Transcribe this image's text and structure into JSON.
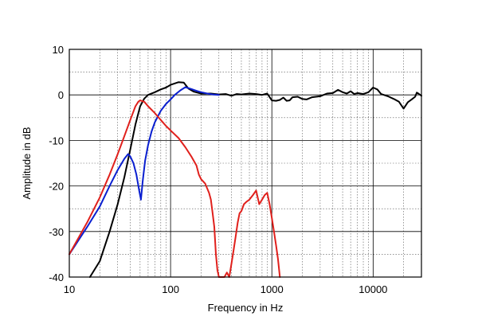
{
  "chart_data": {
    "type": "line",
    "xlabel": "Frequency in Hz",
    "ylabel": "Amplitude in dB",
    "xscale": "log",
    "xlim": [
      10,
      30000
    ],
    "ylim": [
      -40,
      10
    ],
    "grid": true,
    "x_ticks": [
      {
        "value": 10,
        "label": "10"
      },
      {
        "value": 100,
        "label": "100"
      },
      {
        "value": 1000,
        "label": "1000"
      },
      {
        "value": 10000,
        "label": "10000"
      }
    ],
    "y_ticks": [
      {
        "value": 10,
        "label": "10"
      },
      {
        "value": 0,
        "label": "0"
      },
      {
        "value": -10,
        "label": "-10"
      },
      {
        "value": -20,
        "label": "-20"
      },
      {
        "value": -30,
        "label": "-30"
      },
      {
        "value": -40,
        "label": "-40"
      }
    ],
    "series": [
      {
        "color": "#000000",
        "points": [
          [
            16,
            -40
          ],
          [
            20,
            -36.5
          ],
          [
            25,
            -30
          ],
          [
            30,
            -24
          ],
          [
            35,
            -18
          ],
          [
            40,
            -12
          ],
          [
            45,
            -6.5
          ],
          [
            50,
            -2.5
          ],
          [
            55,
            -0.8
          ],
          [
            60,
            0
          ],
          [
            70,
            0.6
          ],
          [
            80,
            1.2
          ],
          [
            90,
            1.6
          ],
          [
            100,
            2.2
          ],
          [
            120,
            2.8
          ],
          [
            135,
            2.7
          ],
          [
            150,
            1.4
          ],
          [
            170,
            0.7
          ],
          [
            200,
            0.3
          ],
          [
            250,
            0.3
          ],
          [
            300,
            0.1
          ],
          [
            350,
            0.2
          ],
          [
            400,
            -0.2
          ],
          [
            450,
            0.2
          ],
          [
            500,
            0.1
          ],
          [
            600,
            0.3
          ],
          [
            700,
            0.2
          ],
          [
            800,
            0
          ],
          [
            900,
            0.3
          ],
          [
            1000,
            -1.2
          ],
          [
            1100,
            -1.3
          ],
          [
            1200,
            -1.1
          ],
          [
            1300,
            -0.6
          ],
          [
            1400,
            -1.3
          ],
          [
            1500,
            -1.2
          ],
          [
            1600,
            -0.5
          ],
          [
            1800,
            -0.4
          ],
          [
            2000,
            -0.9
          ],
          [
            2200,
            -1.0
          ],
          [
            2500,
            -0.5
          ],
          [
            3000,
            -0.3
          ],
          [
            3500,
            0.3
          ],
          [
            4000,
            0.4
          ],
          [
            4500,
            1.1
          ],
          [
            5000,
            0.6
          ],
          [
            5500,
            0.3
          ],
          [
            6000,
            0.8
          ],
          [
            6500,
            0.2
          ],
          [
            7000,
            0.4
          ],
          [
            8000,
            0.2
          ],
          [
            9000,
            0.6
          ],
          [
            10000,
            1.6
          ],
          [
            11000,
            1.2
          ],
          [
            12000,
            0.2
          ],
          [
            14000,
            -0.3
          ],
          [
            16000,
            -0.9
          ],
          [
            18000,
            -1.5
          ],
          [
            20000,
            -3.0
          ],
          [
            22000,
            -1.6
          ],
          [
            24000,
            -1.0
          ],
          [
            26000,
            -0.4
          ],
          [
            27000,
            0.5
          ],
          [
            28000,
            0.3
          ],
          [
            30000,
            -0.2
          ]
        ]
      },
      {
        "color": "#0a1fd0",
        "points": [
          [
            10,
            -35
          ],
          [
            15,
            -29
          ],
          [
            20,
            -24.5
          ],
          [
            25,
            -20
          ],
          [
            30,
            -16.5
          ],
          [
            35,
            -14
          ],
          [
            38,
            -13
          ],
          [
            40,
            -13.5
          ],
          [
            43,
            -15
          ],
          [
            46,
            -17.5
          ],
          [
            49,
            -21
          ],
          [
            51,
            -23
          ],
          [
            53,
            -19
          ],
          [
            56,
            -14.5
          ],
          [
            60,
            -11
          ],
          [
            65,
            -8
          ],
          [
            70,
            -6
          ],
          [
            80,
            -3.5
          ],
          [
            90,
            -2
          ],
          [
            100,
            -1
          ],
          [
            110,
            0
          ],
          [
            125,
            1
          ],
          [
            140,
            1.7
          ],
          [
            160,
            1.3
          ],
          [
            180,
            0.9
          ],
          [
            200,
            0.6
          ],
          [
            230,
            0.3
          ],
          [
            260,
            0.1
          ],
          [
            300,
            0
          ]
        ]
      },
      {
        "color": "#e0201c",
        "points": [
          [
            10,
            -35
          ],
          [
            15,
            -28
          ],
          [
            20,
            -22.5
          ],
          [
            25,
            -17.5
          ],
          [
            30,
            -13
          ],
          [
            35,
            -9
          ],
          [
            40,
            -5.5
          ],
          [
            45,
            -2.5
          ],
          [
            48,
            -1.5
          ],
          [
            50,
            -1.2
          ],
          [
            55,
            -1.5
          ],
          [
            60,
            -2.5
          ],
          [
            70,
            -4
          ],
          [
            80,
            -5.5
          ],
          [
            90,
            -6.8
          ],
          [
            100,
            -7.8
          ],
          [
            120,
            -9.5
          ],
          [
            140,
            -11.5
          ],
          [
            160,
            -13.5
          ],
          [
            180,
            -15.5
          ],
          [
            190,
            -17.5
          ],
          [
            200,
            -18.5
          ],
          [
            220,
            -19.5
          ],
          [
            240,
            -21.5
          ],
          [
            250,
            -23
          ],
          [
            260,
            -26
          ],
          [
            270,
            -29
          ],
          [
            275,
            -32
          ],
          [
            280,
            -35
          ],
          [
            290,
            -38.5
          ],
          [
            300,
            -40
          ],
          [
            320,
            -40
          ],
          [
            340,
            -40
          ],
          [
            360,
            -39
          ],
          [
            380,
            -40
          ],
          [
            400,
            -37
          ],
          [
            420,
            -34
          ],
          [
            440,
            -31
          ],
          [
            460,
            -28
          ],
          [
            480,
            -26
          ],
          [
            500,
            -25.5
          ],
          [
            530,
            -24
          ],
          [
            560,
            -23.5
          ],
          [
            600,
            -23
          ],
          [
            650,
            -22
          ],
          [
            700,
            -21
          ],
          [
            750,
            -24
          ],
          [
            800,
            -23
          ],
          [
            850,
            -22
          ],
          [
            900,
            -21.5
          ],
          [
            950,
            -24
          ],
          [
            1000,
            -27
          ],
          [
            1050,
            -30
          ],
          [
            1100,
            -33
          ],
          [
            1150,
            -36
          ],
          [
            1200,
            -40
          ]
        ]
      }
    ]
  }
}
